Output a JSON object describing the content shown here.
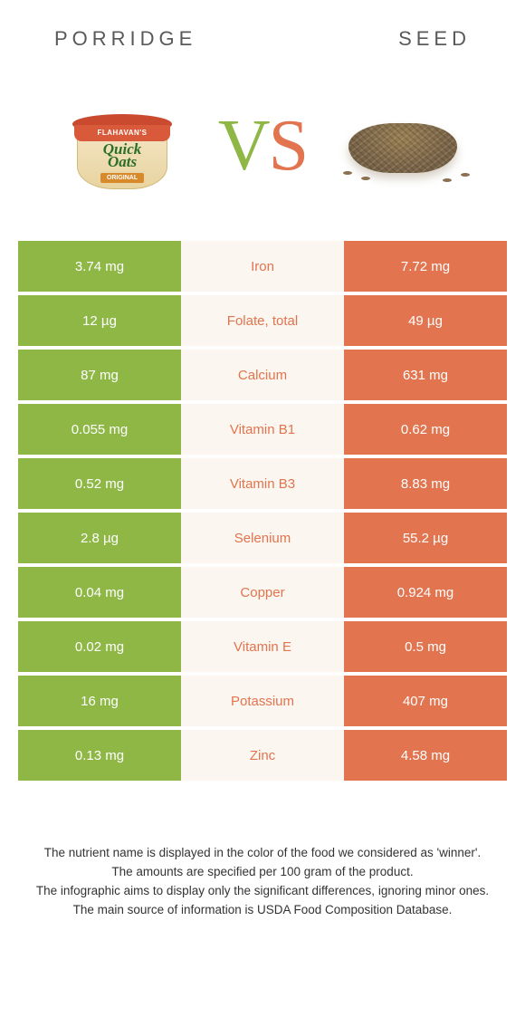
{
  "titles": {
    "left": "Porridge",
    "right": "Seed"
  },
  "vs": {
    "v": "V",
    "s": "S"
  },
  "colors": {
    "green": "#8eb746",
    "orange": "#e2744f",
    "cream": "#fbf6ef",
    "label_green": "#8eb746",
    "label_orange": "#e2744f"
  },
  "porridge_pack": {
    "brand": "FLAHAVAN'S",
    "name_line1": "Quick",
    "name_line2": "Oats",
    "variant": "ORIGINAL"
  },
  "rows": [
    {
      "left": "3.74 mg",
      "label": "Iron",
      "right": "7.72 mg",
      "winner": "right"
    },
    {
      "left": "12 µg",
      "label": "Folate, total",
      "right": "49 µg",
      "winner": "right"
    },
    {
      "left": "87 mg",
      "label": "Calcium",
      "right": "631 mg",
      "winner": "right"
    },
    {
      "left": "0.055 mg",
      "label": "Vitamin B1",
      "right": "0.62 mg",
      "winner": "right"
    },
    {
      "left": "0.52 mg",
      "label": "Vitamin B3",
      "right": "8.83 mg",
      "winner": "right"
    },
    {
      "left": "2.8 µg",
      "label": "Selenium",
      "right": "55.2 µg",
      "winner": "right"
    },
    {
      "left": "0.04 mg",
      "label": "Copper",
      "right": "0.924 mg",
      "winner": "right"
    },
    {
      "left": "0.02 mg",
      "label": "Vitamin E",
      "right": "0.5 mg",
      "winner": "right"
    },
    {
      "left": "16 mg",
      "label": "Potassium",
      "right": "407 mg",
      "winner": "right"
    },
    {
      "left": "0.13 mg",
      "label": "Zinc",
      "right": "4.58 mg",
      "winner": "right"
    }
  ],
  "footer": {
    "line1": "The nutrient name is displayed in the color of the food we considered as 'winner'.",
    "line2": "The amounts are specified per 100 gram of the product.",
    "line3": "The infographic aims to display only the significant differences, ignoring minor ones.",
    "line4": "The main source of information is USDA Food Composition Database."
  }
}
